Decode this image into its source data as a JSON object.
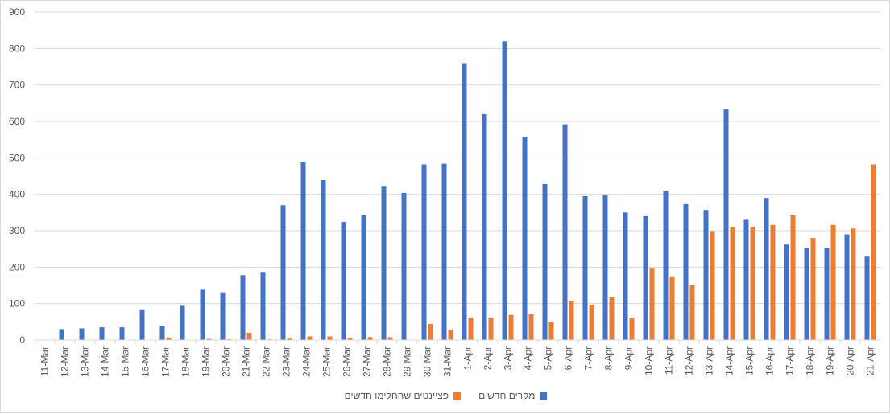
{
  "colors": {
    "series1": "#4472c4",
    "series2": "#ed7d31",
    "grid": "#d9d9d9",
    "axis_text": "#595959"
  },
  "chart_data": {
    "type": "bar",
    "categories": [
      "11-Mar",
      "12-Mar",
      "13-Mar",
      "14-Mar",
      "15-Mar",
      "16-Mar",
      "17-Mar",
      "18-Mar",
      "19-Mar",
      "20-Mar",
      "21-Mar",
      "22-Mar",
      "23-Mar",
      "24-Mar",
      "25-Mar",
      "26-Mar",
      "27-Mar",
      "28-Mar",
      "29-Mar",
      "30-Mar",
      "31-Mar",
      "1-Apr",
      "2-Apr",
      "3-Apr",
      "4-Apr",
      "5-Apr",
      "6-Apr",
      "7-Apr",
      "8-Apr",
      "9-Apr",
      "10-Apr",
      "11-Apr",
      "12-Apr",
      "13-Apr",
      "14-Apr",
      "15-Apr",
      "16-Apr",
      "17-Apr",
      "18-Apr",
      "19-Apr",
      "20-Apr",
      "21-Apr"
    ],
    "series": [
      {
        "name": "מקרים חדשים",
        "values": [
          0,
          30,
          32,
          35,
          35,
          82,
          39,
          94,
          138,
          131,
          178,
          187,
          370,
          488,
          439,
          324,
          342,
          423,
          404,
          482,
          484,
          760,
          620,
          820,
          558,
          428,
          592,
          395,
          397,
          350,
          340,
          410,
          373,
          357,
          633,
          330,
          390,
          262,
          252,
          253,
          290,
          229
        ]
      },
      {
        "name": "פציינטים שהחלימו חדשים",
        "values": [
          0,
          0,
          1,
          1,
          0,
          0,
          7,
          0,
          3,
          2,
          20,
          2,
          4,
          10,
          10,
          6,
          8,
          8,
          0,
          44,
          28,
          62,
          62,
          69,
          71,
          50,
          107,
          97,
          117,
          61,
          196,
          175,
          152,
          299,
          311,
          310,
          316,
          342,
          280,
          316,
          306,
          482
        ]
      }
    ],
    "ylim": [
      0,
      900
    ],
    "yticks": [
      0,
      100,
      200,
      300,
      400,
      500,
      600,
      700,
      800,
      900
    ],
    "grid": true,
    "legend_position": "bottom"
  }
}
